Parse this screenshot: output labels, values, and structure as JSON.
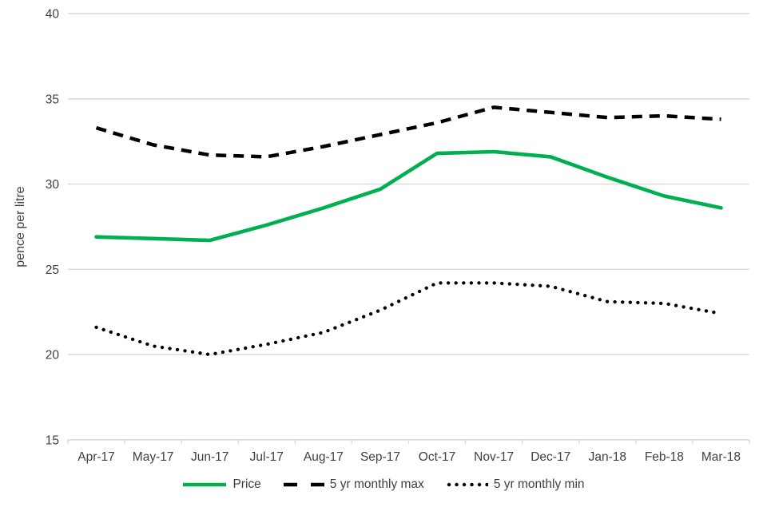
{
  "chart_data": {
    "type": "line",
    "title": "",
    "xlabel": "",
    "ylabel": "pence per litre",
    "categories": [
      "Apr-17",
      "May-17",
      "Jun-17",
      "Jul-17",
      "Aug-17",
      "Sep-17",
      "Oct-17",
      "Nov-17",
      "Dec-17",
      "Jan-18",
      "Feb-18",
      "Mar-18"
    ],
    "series": [
      {
        "name": "Price",
        "color": "#00b050",
        "style": "solid",
        "values": [
          26.9,
          26.8,
          26.7,
          27.6,
          28.6,
          29.7,
          31.8,
          31.9,
          31.6,
          30.4,
          29.3,
          28.6
        ]
      },
      {
        "name": "5 yr monthly max",
        "color": "#000000",
        "style": "dashed",
        "values": [
          33.3,
          32.3,
          31.7,
          31.6,
          32.2,
          32.9,
          33.6,
          34.5,
          34.2,
          33.9,
          34.0,
          33.8
        ]
      },
      {
        "name": "5 yr monthly min",
        "color": "#000000",
        "style": "dotted",
        "values": [
          21.6,
          20.5,
          20.0,
          20.6,
          21.3,
          22.6,
          24.2,
          24.2,
          24.0,
          23.1,
          23.0,
          22.4
        ]
      }
    ],
    "ylim": [
      15,
      40
    ],
    "yticks": [
      15,
      20,
      25,
      30,
      35,
      40
    ],
    "grid": "horizontal",
    "legend_position": "bottom"
  },
  "colors": {
    "grid": "#d9d9d9",
    "axis": "#d9d9d9",
    "text": "#404040",
    "price_green": "#00b050",
    "black": "#000000",
    "background": "#ffffff"
  }
}
